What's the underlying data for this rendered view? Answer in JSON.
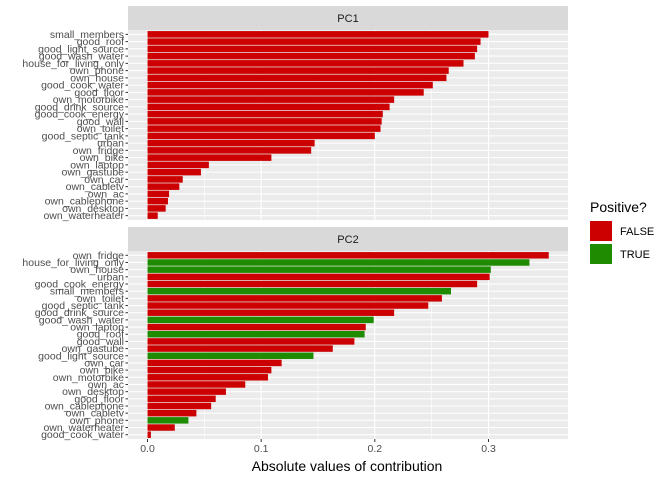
{
  "colors": {
    "false": "#CC0000",
    "true": "#1E8B00",
    "panel_bg": "#EBEBEB",
    "strip_bg": "#D9D9D9",
    "grid": "#FFFFFF"
  },
  "legend": {
    "title": "Positive?",
    "items": [
      {
        "label": "FALSE",
        "color": "#CC0000"
      },
      {
        "label": "TRUE",
        "color": "#1E8B00"
      }
    ]
  },
  "chart_data": {
    "type": "bar",
    "orientation": "horizontal",
    "xlabel": "Absolute values of contribution",
    "xlim": [
      0,
      0.35
    ],
    "xticks": [
      {
        "value": 0,
        "label": "0.0"
      },
      {
        "value": 0.1,
        "label": "0.1"
      },
      {
        "value": 0.2,
        "label": "0.2"
      },
      {
        "value": 0.3,
        "label": "0.3"
      }
    ],
    "grid": true,
    "legend_position": "right",
    "panels": [
      {
        "title": "PC1",
        "bars": [
          {
            "label": "small_members",
            "value": 0.3,
            "positive": false
          },
          {
            "label": "good_roof",
            "value": 0.293,
            "positive": false
          },
          {
            "label": "good_light_source",
            "value": 0.29,
            "positive": false
          },
          {
            "label": "good_wash_water",
            "value": 0.288,
            "positive": false
          },
          {
            "label": "house_for_living_only",
            "value": 0.278,
            "positive": false
          },
          {
            "label": "own_phone",
            "value": 0.265,
            "positive": false
          },
          {
            "label": "own_house",
            "value": 0.263,
            "positive": false
          },
          {
            "label": "good_cook_water",
            "value": 0.251,
            "positive": false
          },
          {
            "label": "good_floor",
            "value": 0.243,
            "positive": false
          },
          {
            "label": "own_motorbike",
            "value": 0.217,
            "positive": false
          },
          {
            "label": "good_drink_source",
            "value": 0.213,
            "positive": false
          },
          {
            "label": "good_cook_energy",
            "value": 0.207,
            "positive": false
          },
          {
            "label": "good_wall",
            "value": 0.206,
            "positive": false
          },
          {
            "label": "own_toilet",
            "value": 0.205,
            "positive": false
          },
          {
            "label": "good_septic_tank",
            "value": 0.2,
            "positive": false
          },
          {
            "label": "urban",
            "value": 0.147,
            "positive": false
          },
          {
            "label": "own_fridge",
            "value": 0.144,
            "positive": false
          },
          {
            "label": "own_bike",
            "value": 0.109,
            "positive": false
          },
          {
            "label": "own_laptop",
            "value": 0.054,
            "positive": false
          },
          {
            "label": "own_gastube",
            "value": 0.047,
            "positive": false
          },
          {
            "label": "own_car",
            "value": 0.031,
            "positive": false
          },
          {
            "label": "own_cabletv",
            "value": 0.028,
            "positive": false
          },
          {
            "label": "own_ac",
            "value": 0.019,
            "positive": false
          },
          {
            "label": "own_cablephone",
            "value": 0.018,
            "positive": false
          },
          {
            "label": "own_desktop",
            "value": 0.016,
            "positive": false
          },
          {
            "label": "own_waterheater",
            "value": 0.009,
            "positive": false
          }
        ]
      },
      {
        "title": "PC2",
        "bars": [
          {
            "label": "own_fridge",
            "value": 0.353,
            "positive": false
          },
          {
            "label": "house_for_living_only",
            "value": 0.336,
            "positive": true
          },
          {
            "label": "own_house",
            "value": 0.302,
            "positive": true
          },
          {
            "label": "urban",
            "value": 0.301,
            "positive": false
          },
          {
            "label": "good_cook_energy",
            "value": 0.29,
            "positive": false
          },
          {
            "label": "small_members",
            "value": 0.267,
            "positive": true
          },
          {
            "label": "own_toilet",
            "value": 0.259,
            "positive": false
          },
          {
            "label": "good_septic_tank",
            "value": 0.247,
            "positive": false
          },
          {
            "label": "good_drink_source",
            "value": 0.217,
            "positive": false
          },
          {
            "label": "good_wash_water",
            "value": 0.199,
            "positive": true
          },
          {
            "label": "own_laptop",
            "value": 0.192,
            "positive": false
          },
          {
            "label": "good_roof",
            "value": 0.191,
            "positive": true
          },
          {
            "label": "good_wall",
            "value": 0.182,
            "positive": false
          },
          {
            "label": "own_gastube",
            "value": 0.163,
            "positive": false
          },
          {
            "label": "good_light_source",
            "value": 0.146,
            "positive": true
          },
          {
            "label": "own_car",
            "value": 0.118,
            "positive": false
          },
          {
            "label": "own_bike",
            "value": 0.109,
            "positive": false
          },
          {
            "label": "own_motorbike",
            "value": 0.106,
            "positive": false
          },
          {
            "label": "own_ac",
            "value": 0.086,
            "positive": false
          },
          {
            "label": "own_desktop",
            "value": 0.069,
            "positive": false
          },
          {
            "label": "good_floor",
            "value": 0.06,
            "positive": false
          },
          {
            "label": "own_cablephone",
            "value": 0.056,
            "positive": false
          },
          {
            "label": "own_cabletv",
            "value": 0.043,
            "positive": false
          },
          {
            "label": "own_phone",
            "value": 0.036,
            "positive": true
          },
          {
            "label": "own_waterheater",
            "value": 0.024,
            "positive": false
          },
          {
            "label": "good_cook_water",
            "value": 0.003,
            "positive": false
          }
        ]
      }
    ]
  }
}
